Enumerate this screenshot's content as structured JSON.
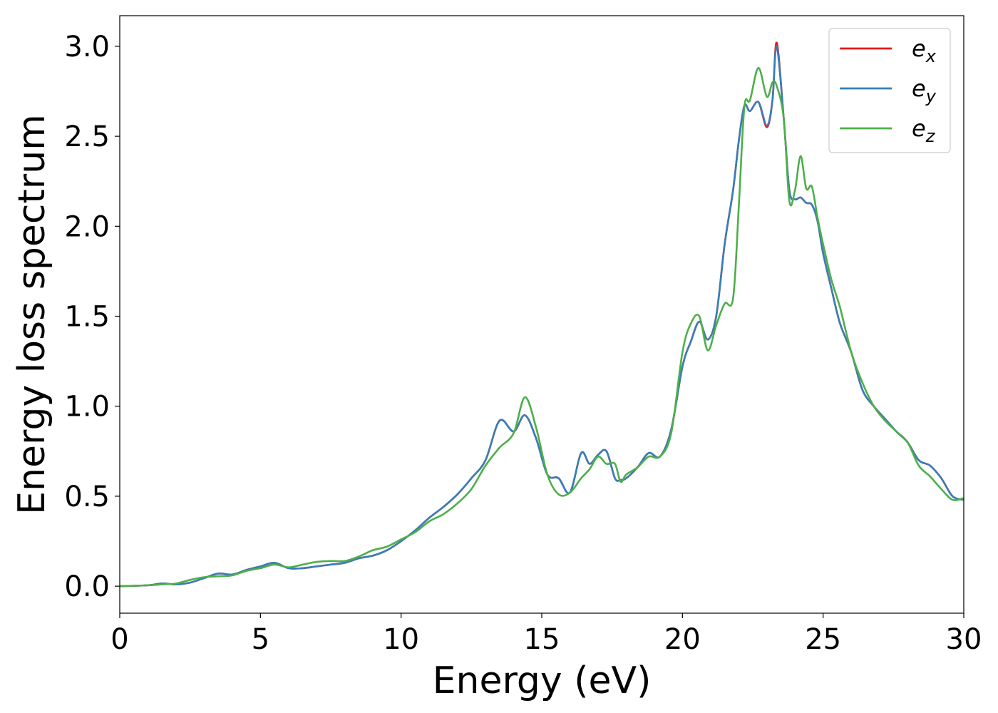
{
  "chart_data": {
    "type": "line",
    "xlabel": "Energy (eV)",
    "ylabel": "Energy loss spectrum",
    "xlim": [
      0,
      30
    ],
    "ylim": [
      -0.15,
      3.17
    ],
    "xticks": [
      "0",
      "5",
      "10",
      "15",
      "20",
      "25",
      "30"
    ],
    "yticks": [
      "0.0",
      "0.5",
      "1.0",
      "1.5",
      "2.0",
      "2.5",
      "3.0"
    ],
    "grid": false,
    "legend_position": "top-right",
    "legend": [
      {
        "base": "e",
        "sub": "x",
        "color": "#e41a1c"
      },
      {
        "base": "e",
        "sub": "y",
        "color": "#377eb8"
      },
      {
        "base": "e",
        "sub": "z",
        "color": "#4daf4a"
      }
    ],
    "series": [
      {
        "key": "ex",
        "color": "#e41a1c",
        "x": [
          0,
          1,
          1.5,
          2,
          2.5,
          3,
          3.5,
          4,
          4.5,
          5,
          5.5,
          6,
          6.5,
          7,
          7.5,
          8,
          8.5,
          9,
          9.5,
          10,
          10.5,
          11,
          11.5,
          12,
          12.5,
          13,
          13.5,
          14,
          14.4,
          14.8,
          15.2,
          15.6,
          16,
          16.4,
          16.7,
          17,
          17.3,
          17.6,
          17.8,
          18,
          18.4,
          18.8,
          19.2,
          19.6,
          20,
          20.3,
          20.6,
          20.9,
          21.2,
          21.5,
          21.8,
          22,
          22.2,
          22.4,
          22.7,
          23,
          23.2,
          23.35,
          23.6,
          23.8,
          24,
          24.2,
          24.4,
          24.6,
          24.8,
          25,
          25.3,
          25.6,
          26,
          26.4,
          26.8,
          27.2,
          27.6,
          28,
          28.4,
          28.8,
          29.2,
          29.6,
          30
        ],
        "y": [
          0,
          0.005,
          0.015,
          0.01,
          0.02,
          0.045,
          0.07,
          0.065,
          0.09,
          0.11,
          0.13,
          0.1,
          0.1,
          0.11,
          0.12,
          0.13,
          0.155,
          0.17,
          0.2,
          0.25,
          0.31,
          0.38,
          0.44,
          0.51,
          0.6,
          0.7,
          0.92,
          0.86,
          0.95,
          0.82,
          0.62,
          0.6,
          0.52,
          0.74,
          0.68,
          0.73,
          0.75,
          0.6,
          0.59,
          0.6,
          0.66,
          0.74,
          0.72,
          0.87,
          1.22,
          1.36,
          1.47,
          1.37,
          1.5,
          1.9,
          2.2,
          2.47,
          2.67,
          2.64,
          2.69,
          2.55,
          2.7,
          3.02,
          2.6,
          2.2,
          2.15,
          2.16,
          2.13,
          2.12,
          2.03,
          1.85,
          1.65,
          1.46,
          1.3,
          1.09,
          1.0,
          0.93,
          0.86,
          0.8,
          0.7,
          0.67,
          0.6,
          0.5,
          0.48
        ]
      },
      {
        "key": "ey",
        "color": "#377eb8",
        "x": [
          0,
          1,
          1.5,
          2,
          2.5,
          3,
          3.5,
          4,
          4.5,
          5,
          5.5,
          6,
          6.5,
          7,
          7.5,
          8,
          8.5,
          9,
          9.5,
          10,
          10.5,
          11,
          11.5,
          12,
          12.5,
          13,
          13.5,
          14,
          14.4,
          14.8,
          15.2,
          15.6,
          16,
          16.4,
          16.7,
          17,
          17.3,
          17.6,
          17.8,
          18,
          18.4,
          18.8,
          19.2,
          19.6,
          20,
          20.3,
          20.6,
          20.9,
          21.2,
          21.5,
          21.8,
          22,
          22.2,
          22.4,
          22.7,
          23,
          23.2,
          23.35,
          23.6,
          23.8,
          24,
          24.2,
          24.4,
          24.6,
          24.8,
          25,
          25.3,
          25.6,
          26,
          26.4,
          26.8,
          27.2,
          27.6,
          28,
          28.4,
          28.8,
          29.2,
          29.6,
          30
        ],
        "y": [
          0,
          0.005,
          0.015,
          0.01,
          0.02,
          0.045,
          0.07,
          0.065,
          0.09,
          0.11,
          0.13,
          0.1,
          0.1,
          0.11,
          0.12,
          0.13,
          0.155,
          0.17,
          0.2,
          0.25,
          0.31,
          0.38,
          0.44,
          0.51,
          0.6,
          0.7,
          0.92,
          0.86,
          0.95,
          0.82,
          0.62,
          0.6,
          0.52,
          0.74,
          0.68,
          0.73,
          0.75,
          0.6,
          0.59,
          0.6,
          0.66,
          0.74,
          0.72,
          0.87,
          1.22,
          1.36,
          1.47,
          1.37,
          1.5,
          1.9,
          2.2,
          2.47,
          2.67,
          2.64,
          2.69,
          2.56,
          2.7,
          3.0,
          2.6,
          2.2,
          2.15,
          2.16,
          2.13,
          2.12,
          2.03,
          1.85,
          1.65,
          1.46,
          1.3,
          1.09,
          1.0,
          0.93,
          0.86,
          0.8,
          0.7,
          0.67,
          0.6,
          0.5,
          0.48
        ]
      },
      {
        "key": "ez",
        "color": "#4daf4a",
        "x": [
          0,
          1,
          1.5,
          2,
          2.5,
          3,
          3.5,
          4,
          4.5,
          5,
          5.5,
          6,
          6.5,
          7,
          7.5,
          8,
          8.5,
          9,
          9.5,
          10,
          10.5,
          11,
          11.5,
          12,
          12.5,
          13,
          13.5,
          14,
          14.4,
          14.8,
          15.2,
          15.6,
          16,
          16.4,
          16.7,
          17,
          17.3,
          17.6,
          17.8,
          18,
          18.4,
          18.8,
          19.2,
          19.6,
          20,
          20.3,
          20.6,
          20.9,
          21.2,
          21.5,
          21.8,
          22,
          22.2,
          22.4,
          22.7,
          23,
          23.2,
          23.35,
          23.6,
          23.8,
          24,
          24.2,
          24.4,
          24.6,
          24.8,
          25,
          25.3,
          25.6,
          26,
          26.4,
          26.8,
          27.2,
          27.6,
          28,
          28.4,
          28.8,
          29.2,
          29.6,
          30
        ],
        "y": [
          0,
          0.005,
          0.01,
          0.015,
          0.035,
          0.05,
          0.055,
          0.06,
          0.085,
          0.1,
          0.12,
          0.105,
          0.12,
          0.135,
          0.14,
          0.14,
          0.165,
          0.2,
          0.22,
          0.26,
          0.3,
          0.36,
          0.4,
          0.46,
          0.54,
          0.67,
          0.77,
          0.85,
          1.05,
          0.88,
          0.62,
          0.51,
          0.52,
          0.6,
          0.65,
          0.72,
          0.68,
          0.68,
          0.58,
          0.62,
          0.66,
          0.72,
          0.72,
          0.85,
          1.3,
          1.46,
          1.5,
          1.31,
          1.45,
          1.57,
          1.6,
          2.1,
          2.66,
          2.7,
          2.88,
          2.72,
          2.8,
          2.78,
          2.6,
          2.14,
          2.2,
          2.39,
          2.21,
          2.22,
          2.05,
          1.9,
          1.7,
          1.55,
          1.3,
          1.13,
          1.0,
          0.92,
          0.86,
          0.8,
          0.67,
          0.61,
          0.54,
          0.48,
          0.49
        ]
      }
    ]
  }
}
